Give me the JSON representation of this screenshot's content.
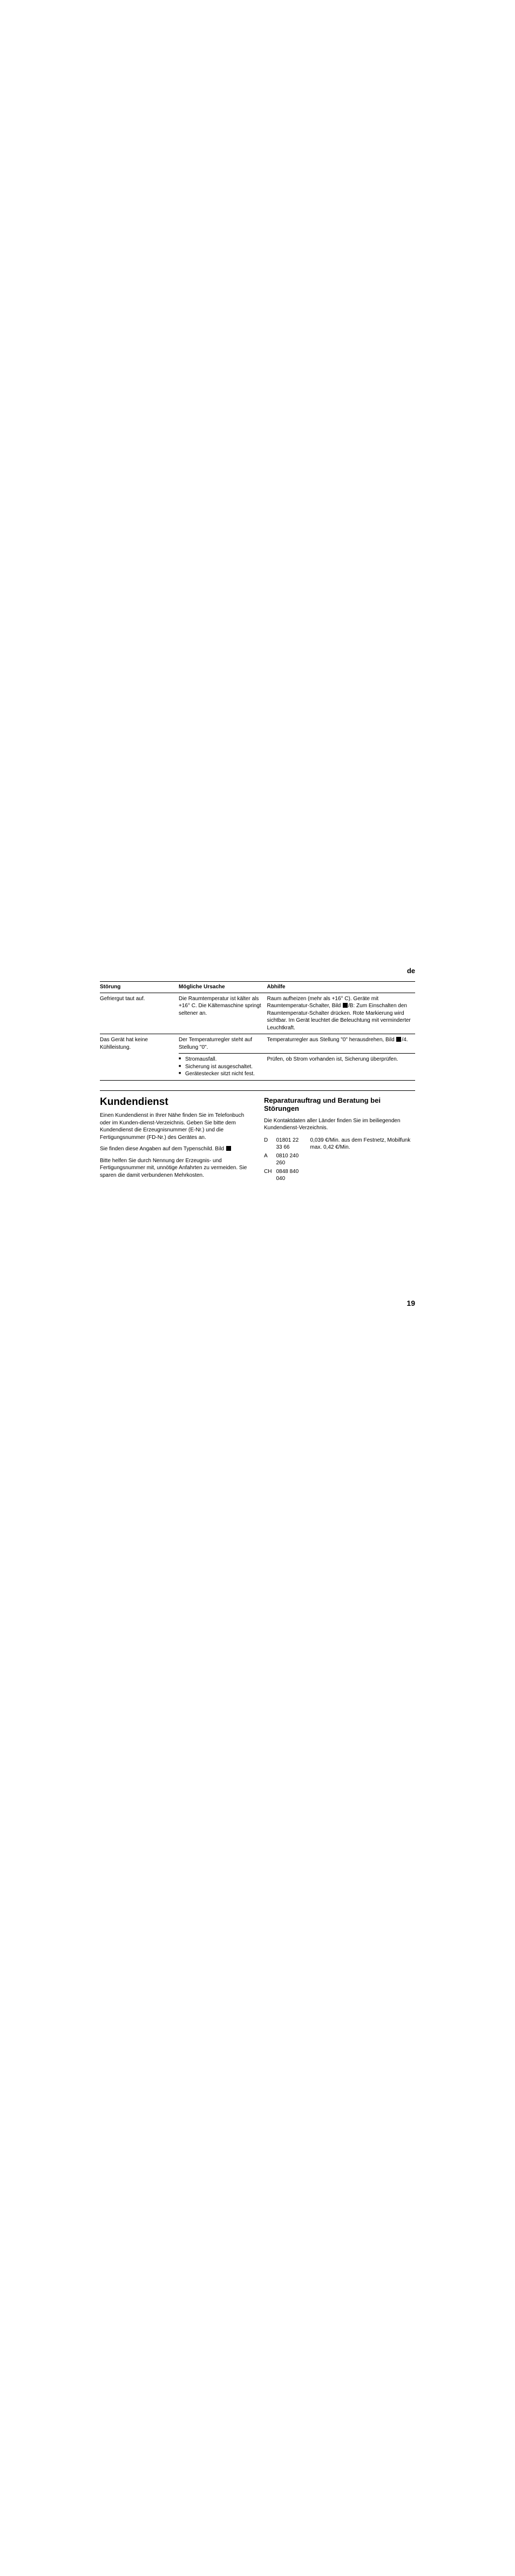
{
  "lang_tag": "de",
  "faults_table": {
    "headers": [
      "Störung",
      "Mögliche Ursache",
      "Abhilfe"
    ],
    "rows": [
      {
        "c1": "Gefriergut taut auf.",
        "c2": "Die Raumtemperatur ist kälter als +16° C. Die Kältemaschine springt seltener an.",
        "c3_pre": "Raum aufheizen (mehr als +16° C). Geräte mit Raumtemperatur-Schalter, Bild ",
        "c3_mid": "/B: Zum Einschalten den Raumtemperatur-Schalter drücken. Rote Markierung wird sichtbar. Im Gerät leuchtet die Beleuchtung mit verminderter Leuchtkraft."
      },
      {
        "c1": "Das Gerät hat keine Kühlleistung.",
        "c2": "Der Temperaturregler steht auf Stellung \"0\".",
        "c3_pre": "Temperaturregler aus Stellung \"0\" herausdrehen, Bild ",
        "c3_mid": "/4."
      },
      {
        "c1": "",
        "c2_list": [
          "Stromausfall.",
          "Sicherung ist ausgeschaltet.",
          "Gerätestecker sitzt nicht fest."
        ],
        "c3": "Prüfen, ob Strom vorhanden ist, Sicherung überprüfen."
      }
    ]
  },
  "left": {
    "heading": "Kundendienst",
    "p1": "Einen Kundendienst in Ihrer Nähe finden Sie im Telefonbuch oder im Kunden-dienst-Verzeichnis. Geben Sie bitte dem Kundendienst die Erzeugnisnummer (E-Nr.) und die Fertigungsnummer (FD-Nr.) des Gerätes an.",
    "p2": "Sie finden diese Angaben auf dem Typenschild. Bild ",
    "p3": "Bitte helfen Sie durch Nennung der Erzeugnis- und Fertigungsnummer mit, unnötige Anfahrten zu vermeiden. Sie sparen die damit verbundenen Mehrkosten."
  },
  "right": {
    "heading": "Reparaturauftrag und Beratung bei Störungen",
    "p1": "Die Kontaktdaten aller Länder finden Sie im beiliegenden Kundendienst-Verzeichnis.",
    "contacts": [
      {
        "cc": "D",
        "num": "01801 22 33 66",
        "note": "0,039 €/Min. aus dem Festnetz, Mobilfunk max. 0,42 €/Min."
      },
      {
        "cc": "A",
        "num": "0810 240 260",
        "note": ""
      },
      {
        "cc": "CH",
        "num": "0848 840 040",
        "note": ""
      }
    ]
  },
  "page_number": "19"
}
